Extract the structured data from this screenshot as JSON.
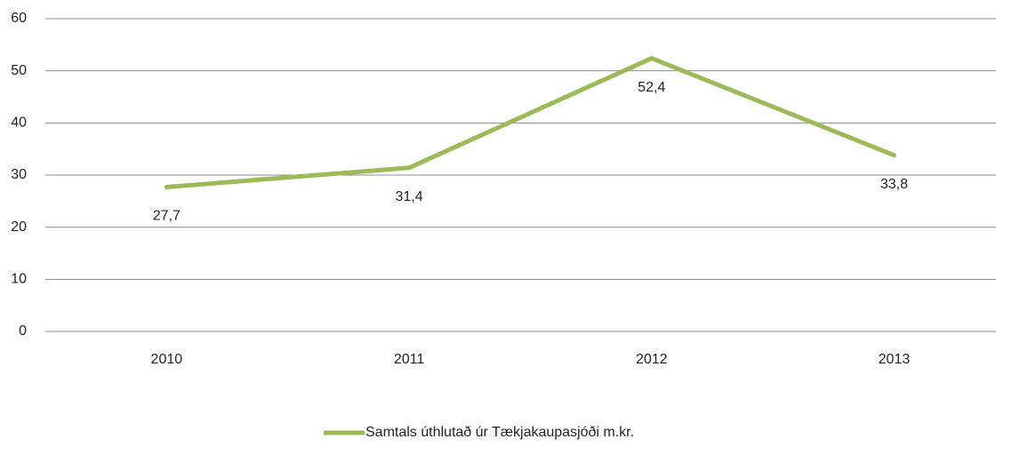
{
  "chart_data": {
    "type": "line",
    "categories": [
      "2010",
      "2011",
      "2012",
      "2013"
    ],
    "series": [
      {
        "name": "Samtals úthlutað úr Tækjakaupasjóði m.kr.",
        "color": "#9bbb59",
        "values": [
          27.7,
          31.4,
          52.4,
          33.8
        ],
        "value_labels": [
          "27,7",
          "31,4",
          "52,4",
          "33,8"
        ]
      }
    ],
    "ylim": [
      0,
      60
    ],
    "yticks": [
      0,
      10,
      20,
      30,
      40,
      50,
      60
    ],
    "grid": true,
    "legend": "bottom"
  }
}
